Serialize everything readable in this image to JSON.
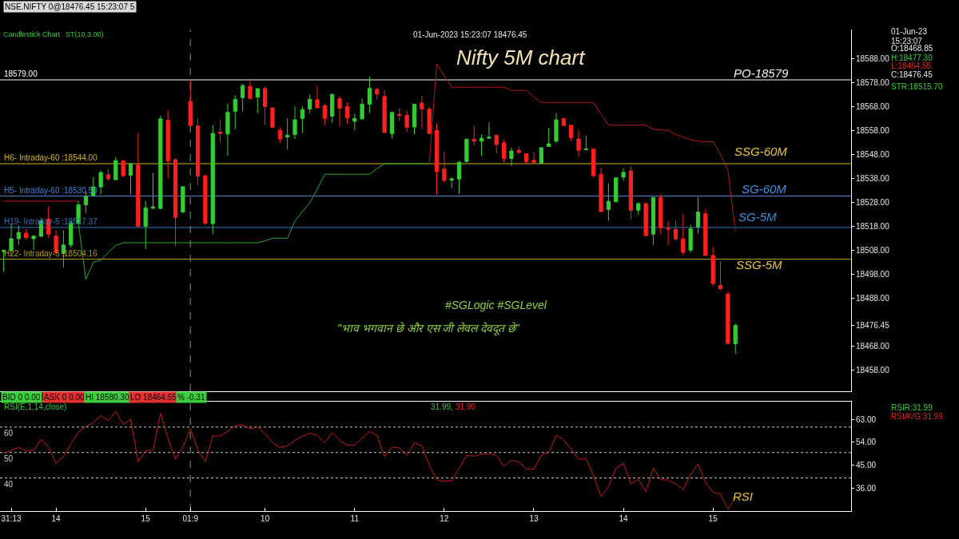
{
  "chart_data": [
    {
      "type": "candlestick",
      "title": "Nifty 5M chart",
      "categories": [
        null,
        "31:13",
        null,
        null,
        null,
        null,
        null,
        "14",
        null,
        null,
        null,
        null,
        null,
        null,
        null,
        null,
        null,
        null,
        null,
        "15",
        null,
        null,
        null,
        null,
        null,
        "01:9",
        null,
        null,
        null,
        null,
        null,
        null,
        null,
        null,
        null,
        "10",
        null,
        null,
        null,
        null,
        null,
        null,
        null,
        null,
        null,
        null,
        null,
        "11",
        null,
        null,
        null,
        null,
        null,
        null,
        null,
        null,
        null,
        null,
        null,
        "12",
        null,
        null,
        null,
        null,
        null,
        null,
        null,
        null,
        null,
        null,
        null,
        "13",
        null,
        null,
        null,
        null,
        null,
        null,
        null,
        null,
        null,
        null,
        null,
        "14",
        null,
        null,
        null,
        null,
        null,
        null,
        null,
        null,
        null,
        null,
        null,
        "15",
        null,
        null,
        null,
        null,
        null,
        null,
        null,
        null,
        null,
        null,
        null,
        null,
        null,
        null,
        null,
        null,
        null,
        null
      ],
      "ohlc": [
        [
          18507.3,
          18507.9,
          18499.0,
          18507.9
        ],
        [
          18507.9,
          18519.0,
          18506.0,
          18512.7
        ],
        [
          18512.7,
          18518.4,
          18510.1,
          18515.3
        ],
        [
          18515.0,
          18516.8,
          18512.3,
          18513.2
        ],
        [
          18512.7,
          18513.8,
          18507.9,
          18513.8
        ],
        [
          18513.7,
          18521.4,
          18513.5,
          18520.1
        ],
        [
          18520.9,
          18526.2,
          18512.9,
          18514.6
        ],
        [
          18513.8,
          18516.2,
          18506.2,
          18506.8
        ],
        [
          18506.5,
          18516.2,
          18500.7,
          18510.1
        ],
        [
          18510.1,
          18520.1,
          18509.0,
          18519.2
        ],
        [
          18519.2,
          18528.4,
          18519.0,
          18526.8
        ],
        [
          18526.8,
          18532.3,
          18523.4,
          18530.4
        ],
        [
          18530.7,
          18538.4,
          18530.4,
          18534.3
        ],
        [
          18534.3,
          18541.2,
          18531.2,
          18540.3
        ],
        [
          18539.4,
          18541.8,
          18536.8,
          18537.7
        ],
        [
          18537.3,
          18546.8,
          18537.3,
          18545.3
        ],
        [
          18545.1,
          18545.7,
          18538.4,
          18539.0
        ],
        [
          18539.2,
          18544.0,
          18531.2,
          18544.0
        ],
        [
          18543.4,
          18556.8,
          18517.9,
          18517.9
        ],
        [
          18517.9,
          18528.4,
          18508.4,
          18525.6
        ],
        [
          18525.4,
          18540.1,
          18525.1,
          18526.0
        ],
        [
          18525.3,
          18564.0,
          18525.1,
          18562.7
        ],
        [
          18562.1,
          18566.2,
          18537.9,
          18545.1
        ],
        [
          18545.7,
          18546.2,
          18509.6,
          18521.6
        ],
        [
          18523.8,
          18534.4,
          18523.4,
          18534.4
        ],
        [
          18570.0,
          18579.0,
          18559.9,
          18559.9
        ],
        [
          18559.8,
          18562.9,
          18535.1,
          18538.8
        ],
        [
          18539.0,
          18539.0,
          18518.4,
          18519.2
        ],
        [
          18519.0,
          18560.1,
          18514.6,
          18556.6
        ],
        [
          18557.2,
          18562.3,
          18552.9,
          18556.6
        ],
        [
          18556.4,
          18569.0,
          18547.3,
          18565.4
        ],
        [
          18565.9,
          18572.6,
          18558.4,
          18570.9
        ],
        [
          18571.6,
          18577.3,
          18565.7,
          18576.6
        ],
        [
          18576.3,
          18578.4,
          18571.2,
          18571.2
        ],
        [
          18571.8,
          18575.7,
          18565.1,
          18575.3
        ],
        [
          18575.4,
          18576.2,
          18560.1,
          18567.9
        ],
        [
          18567.3,
          18567.3,
          18559.2,
          18559.2
        ],
        [
          18557.9,
          18559.2,
          18552.6,
          18554.3
        ],
        [
          18555.1,
          18562.9,
          18549.9,
          18555.9
        ],
        [
          18556.2,
          18567.9,
          18554.3,
          18562.3
        ],
        [
          18562.9,
          18567.9,
          18556.8,
          18566.6
        ],
        [
          18566.8,
          18572.9,
          18565.1,
          18570.9
        ],
        [
          18570.7,
          18576.6,
          18567.3,
          18567.3
        ],
        [
          18568.2,
          18569.0,
          18560.1,
          18562.9
        ],
        [
          18563.8,
          18573.4,
          18561.0,
          18572.9
        ],
        [
          18571.2,
          18572.3,
          18559.6,
          18567.1
        ],
        [
          18567.9,
          18569.6,
          18560.7,
          18563.1
        ],
        [
          18561.7,
          18564.9,
          18557.9,
          18562.9
        ],
        [
          18562.7,
          18571.2,
          18562.3,
          18568.8
        ],
        [
          18568.8,
          18580.3,
          18565.1,
          18575.4
        ],
        [
          18575.1,
          18575.4,
          18570.7,
          18573.1
        ],
        [
          18572.1,
          18574.6,
          18557.0,
          18557.0
        ],
        [
          18556.6,
          18565.7,
          18554.6,
          18565.4
        ],
        [
          18564.6,
          18567.3,
          18561.8,
          18564.1
        ],
        [
          18564.2,
          18566.2,
          18557.3,
          18559.2
        ],
        [
          18559.3,
          18569.0,
          18556.2,
          18568.8
        ],
        [
          18569.3,
          18572.3,
          18558.4,
          18566.8
        ],
        [
          18566.8,
          18567.9,
          18556.6,
          18556.6
        ],
        [
          18557.9,
          18560.7,
          18531.2,
          18540.7
        ],
        [
          18541.8,
          18549.0,
          18536.2,
          18537.0
        ],
        [
          18537.1,
          18538.4,
          18533.7,
          18537.7
        ],
        [
          18537.6,
          18545.1,
          18531.4,
          18544.6
        ],
        [
          18544.9,
          18554.6,
          18544.6,
          18554.2
        ],
        [
          18554.2,
          18559.9,
          18551.8,
          18553.4
        ],
        [
          18553.4,
          18556.2,
          18547.3,
          18554.6
        ],
        [
          18554.6,
          18561.2,
          18554.6,
          18555.1
        ],
        [
          18555.9,
          18555.9,
          18548.4,
          18552.0
        ],
        [
          18552.7,
          18554.0,
          18544.6,
          18546.2
        ],
        [
          18546.2,
          18550.7,
          18542.9,
          18549.3
        ],
        [
          18549.6,
          18551.2,
          18547.9,
          18548.7
        ],
        [
          18548.2,
          18548.2,
          18544.0,
          18544.8
        ],
        [
          18545.4,
          18549.0,
          18544.3,
          18544.6
        ],
        [
          18544.2,
          18550.7,
          18544.2,
          18550.7
        ],
        [
          18551.2,
          18559.0,
          18551.0,
          18552.3
        ],
        [
          18553.4,
          18565.1,
          18552.6,
          18562.3
        ],
        [
          18562.9,
          18562.9,
          18559.9,
          18559.9
        ],
        [
          18560.1,
          18560.1,
          18553.4,
          18554.8
        ],
        [
          18554.3,
          18557.9,
          18546.8,
          18549.6
        ],
        [
          18549.8,
          18555.7,
          18549.6,
          18550.1
        ],
        [
          18550.1,
          18550.3,
          18538.4,
          18539.0
        ],
        [
          18539.6,
          18542.3,
          18524.0,
          18524.0
        ],
        [
          18524.9,
          18535.7,
          18520.1,
          18528.3
        ],
        [
          18528.1,
          18538.1,
          18527.9,
          18538.1
        ],
        [
          18538.4,
          18542.1,
          18536.8,
          18540.4
        ],
        [
          18541.0,
          18542.9,
          18520.7,
          18524.6
        ],
        [
          18524.6,
          18527.9,
          18522.6,
          18527.3
        ],
        [
          18527.3,
          18527.9,
          18513.4,
          18514.0
        ],
        [
          18514.6,
          18530.1,
          18510.1,
          18529.9
        ],
        [
          18529.9,
          18531.2,
          18514.6,
          18517.3
        ],
        [
          18517.0,
          18519.9,
          18510.1,
          18516.7
        ],
        [
          18516.6,
          18520.3,
          18511.8,
          18512.6
        ],
        [
          18512.6,
          18522.9,
          18505.9,
          18507.0
        ],
        [
          18507.9,
          18518.4,
          18506.8,
          18516.8
        ],
        [
          18517.6,
          18530.1,
          18514.8,
          18523.8
        ],
        [
          18523.1,
          18525.1,
          18505.7,
          18505.7
        ],
        [
          18505.7,
          18509.2,
          18492.9,
          18494.0
        ],
        [
          18493.2,
          18503.4,
          18491.2,
          18491.8
        ],
        [
          18489.6,
          18490.7,
          18468.4,
          18469.0
        ],
        [
          18468.85,
          18477.3,
          18464.55,
          18476.45
        ],
        null,
        null,
        null,
        null,
        null,
        null,
        null,
        null,
        null,
        null,
        null,
        null,
        null,
        null,
        null
      ],
      "colors": [
        "#33cc33",
        "#33cc33",
        "#33cc33",
        "#ff1f1f",
        "#33cc33",
        "#33cc33",
        "#ff1f1f",
        "#ff1f1f",
        "#33cc33",
        "#33cc33",
        "#33cc33",
        "#33cc33",
        "#33cc33",
        "#33cc33",
        "#ff1f1f",
        "#33cc33",
        "#ff1f1f",
        "#33cc33",
        "#ff1f1f",
        "#33cc33",
        "#33cc33",
        "#33cc33",
        "#ff1f1f",
        "#ff1f1f",
        "#33cc33",
        "#ff1f1f",
        "#ff1f1f",
        "#ff1f1f",
        "#33cc33",
        "#ff1f1f",
        "#33cc33",
        "#33cc33",
        "#33cc33",
        "#ff1f1f",
        "#33cc33",
        "#ff1f1f",
        "#ff1f1f",
        "#ff1f1f",
        "#33cc33",
        "#33cc33",
        "#33cc33",
        "#33cc33",
        "#ff1f1f",
        "#ff1f1f",
        "#33cc33",
        "#ff1f1f",
        "#ff1f1f",
        "#33cc33",
        "#33cc33",
        "#33cc33",
        "#ff1f1f",
        "#ff1f1f",
        "#33cc33",
        "#ff1f1f",
        "#ff1f1f",
        "#33cc33",
        "#ff1f1f",
        "#ff1f1f",
        "#ff1f1f",
        "#ff1f1f",
        "#33cc33",
        "#33cc33",
        "#33cc33",
        "#ff1f1f",
        "#33cc33",
        "#33cc33",
        "#ff1f1f",
        "#ff1f1f",
        "#33cc33",
        "#ff1f1f",
        "#ff1f1f",
        "#ff1f1f",
        "#33cc33",
        "#33cc33",
        "#33cc33",
        "#ff1f1f",
        "#ff1f1f",
        "#ff1f1f",
        "#33cc33",
        "#ff1f1f",
        "#ff1f1f",
        "#33cc33",
        "#33cc33",
        "#33cc33",
        "#ff1f1f",
        "#33cc33",
        "#ff1f1f",
        "#33cc33",
        "#ff1f1f",
        "#ff1f1f",
        "#ff1f1f",
        "#ff1f1f",
        "#33cc33",
        "#33cc33",
        "#ff1f1f",
        "#ff1f1f",
        "#ff1f1f",
        "#ff1f1f",
        "#33cc33",
        null,
        null,
        null,
        null,
        null,
        null,
        null,
        null,
        null,
        null,
        null,
        null,
        null,
        null,
        null
      ],
      "series": [
        {
          "type": "line",
          "color": "#2ea52e",
          "values": [
            null,
            null,
            null,
            null,
            null,
            null,
            null,
            null,
            null,
            null,
            18519.0,
            18495.7,
            18502.9,
            18503.7,
            18507.0,
            18509.9,
            18511.0,
            18511.0,
            18511.0,
            18511.0,
            18511.0,
            18511.0,
            18511.0,
            18511.0,
            18511.0,
            18511.0,
            18511.0,
            18511.0,
            18511.0,
            18511.0,
            18511.0,
            18511.0,
            18511.0,
            18511.0,
            18511.0,
            18511.8,
            18512.9,
            18512.9,
            18512.9,
            18520.1,
            18524.0,
            18527.7,
            18533.4,
            18539.6,
            18539.6,
            18539.6,
            18539.6,
            18539.6,
            18539.6,
            18539.6,
            18542.0,
            18544.0,
            18544.0,
            18544.0,
            18544.0,
            18544.0,
            18544.0,
            18544.0,
            null,
            null,
            null,
            null,
            null,
            null,
            null,
            null,
            null,
            null,
            null,
            null,
            null,
            null,
            null,
            null,
            null,
            null,
            null,
            null,
            null,
            null,
            null,
            null,
            null,
            null,
            null,
            null,
            null,
            null,
            null,
            null,
            null,
            null,
            null,
            null,
            null,
            null,
            null,
            null,
            null,
            null,
            null,
            null,
            null,
            null,
            null,
            null,
            null,
            null,
            null,
            null,
            null,
            null,
            null,
            null
          ]
        },
        {
          "type": "line",
          "color": "#b01c1c",
          "values": [
            18528.4,
            18528.4,
            18528.4,
            18528.4,
            18528.4,
            18528.4,
            18528.4,
            18528.4,
            18528.4,
            18528.4,
            18528.4,
            null,
            null,
            null,
            null,
            null,
            null,
            null,
            null,
            null,
            null,
            null,
            null,
            null,
            null,
            null,
            null,
            null,
            null,
            null,
            null,
            null,
            null,
            null,
            null,
            null,
            null,
            null,
            null,
            null,
            null,
            null,
            null,
            null,
            null,
            null,
            null,
            null,
            null,
            null,
            null,
            null,
            null,
            null,
            null,
            null,
            null,
            18544.0,
            18585.7,
            18580.7,
            18575.9,
            18575.9,
            18575.9,
            18575.9,
            18575.9,
            18575.9,
            18575.9,
            18575.9,
            18574.6,
            18574.6,
            18574.6,
            18571.8,
            18569.6,
            18569.6,
            18569.6,
            18569.6,
            18569.6,
            18569.6,
            18569.6,
            18569.6,
            18564.6,
            18560.1,
            18560.1,
            18560.1,
            18560.1,
            18560.1,
            18560.1,
            18558.4,
            18558.1,
            18557.9,
            18556.2,
            18555.1,
            18554.0,
            18553.4,
            18553.2,
            18553.2,
            18547.9,
            18541.2,
            18515.7,
            null,
            null,
            null,
            null,
            null,
            null,
            null,
            null,
            null,
            null,
            null,
            null,
            null,
            null,
            null
          ]
        }
      ],
      "ylim": [
        18449,
        18600
      ],
      "yticks": [
        {
          "value": 18588,
          "label": "18588.00"
        },
        {
          "value": 18578,
          "label": "18578.00"
        },
        {
          "value": 18568,
          "label": "18568.00"
        },
        {
          "value": 18558,
          "label": "18558.00"
        },
        {
          "value": 18548,
          "label": "18548.00"
        },
        {
          "value": 18538,
          "label": "18538.00"
        },
        {
          "value": 18528,
          "label": "18528.00"
        },
        {
          "value": 18518,
          "label": "18518.00"
        },
        {
          "value": 18508,
          "label": "18508.00"
        },
        {
          "value": 18498,
          "label": "18498.00"
        },
        {
          "value": 18488,
          "label": "18488.00"
        },
        {
          "value": 18476.45,
          "label": "18476.45"
        },
        {
          "value": 18468,
          "label": "18468.00"
        },
        {
          "value": 18458,
          "label": "18458.00"
        }
      ],
      "tick_labels": "y",
      "ref_lines": [
        {
          "axis": "y",
          "value": 18579,
          "label": "18579.00",
          "color": "#ffffff"
        },
        {
          "axis": "y",
          "value": 18544,
          "label": "H6- Intraday-60 :18544.00",
          "color": "#d4b70f"
        },
        {
          "axis": "y",
          "value": 18530.5,
          "label": "H5- Intraday-60 :18530.50",
          "color": "#3f80d0"
        },
        {
          "axis": "y",
          "value": 18517.37,
          "label": "H19- Intraday-5 :18517.37",
          "color": "#3572ba"
        },
        {
          "axis": "y",
          "value": 18504.16,
          "label": "H22- Intraday-5 :18504.16",
          "color": "#b39c16"
        },
        {
          "axis": "x",
          "value": "01:9",
          "color": "#8c8c8c",
          "line_style": "dashed"
        }
      ],
      "annotations": [
        "NSE.NIFTY 0@18476.45 15:23:07 5",
        "Candlestick Chart",
        "ST(10,3.00)",
        "01-Jun-2023 15:23:07 18476.45",
        "01-Jun-23",
        "15:23:07",
        "O:18468.85",
        "H:18477.30",
        "L:18464.55",
        "C:18476.45",
        "STR:18515.70",
        "#SGLogic #SGLevel",
        "\"भाव भगवान छे और एस जी लेवल देवदूत छे”",
        "BID 0 0.00",
        "ASK 0 0.00",
        "HI 18580.30",
        "LO 18464.55",
        "% -0.31",
        "PO-18579",
        "SSG-60M",
        "SG-60M",
        "SG-5M",
        "SSG-5M"
      ]
    },
    {
      "type": "line",
      "title": "RSI(E,1,14,close)",
      "categories": [
        null,
        "31:13",
        null,
        null,
        null,
        null,
        null,
        "14",
        null,
        null,
        null,
        null,
        null,
        null,
        null,
        null,
        null,
        null,
        null,
        "15",
        null,
        null,
        null,
        null,
        null,
        "01:9",
        null,
        null,
        null,
        null,
        null,
        null,
        null,
        null,
        null,
        "10",
        null,
        null,
        null,
        null,
        null,
        null,
        null,
        null,
        null,
        null,
        null,
        "11",
        null,
        null,
        null,
        null,
        null,
        null,
        null,
        null,
        null,
        null,
        null,
        "12",
        null,
        null,
        null,
        null,
        null,
        null,
        null,
        null,
        null,
        null,
        null,
        "13",
        null,
        null,
        null,
        null,
        null,
        null,
        null,
        null,
        null,
        null,
        null,
        "14",
        null,
        null,
        null,
        null,
        null,
        null,
        null,
        null,
        null,
        null,
        null,
        "15",
        null,
        null,
        null,
        null,
        null,
        null,
        null,
        null,
        null,
        null,
        null,
        null,
        null,
        null,
        null,
        null,
        null,
        null
      ],
      "color": "#c41a1a",
      "values": [
        49.6,
        50.8,
        52.0,
        50.7,
        50.9,
        55.2,
        52.2,
        45.8,
        48.4,
        53.5,
        58.0,
        60.2,
        61.9,
        64.5,
        62.5,
        66.2,
        61.0,
        63.1,
        46.4,
        50.7,
        50.9,
        65.4,
        55.5,
        47.3,
        52.2,
        59.3,
        51.0,
        46.4,
        56.5,
        56.5,
        58.3,
        60.6,
        60.9,
        59.3,
        60.0,
        57.4,
        53.9,
        52.0,
        52.6,
        54.8,
        56.5,
        57.6,
        56.7,
        53.8,
        57.8,
        54.8,
        52.9,
        52.9,
        55.7,
        58.3,
        56.7,
        48.4,
        52.2,
        51.8,
        48.9,
        53.8,
        52.6,
        45.1,
        39.3,
        38.7,
        39.1,
        43.8,
        48.9,
        48.6,
        49.4,
        49.6,
        48.8,
        44.5,
        47.0,
        46.3,
        43.5,
        43.5,
        48.8,
        50.0,
        56.8,
        55.0,
        51.3,
        47.3,
        47.6,
        40.8,
        32.7,
        36.5,
        43.9,
        45.7,
        37.7,
        39.5,
        34.6,
        43.9,
        39.3,
        39.2,
        37.7,
        35.5,
        41.4,
        45.5,
        38.1,
        34.4,
        33.6,
        27.8,
        32.0,
        null,
        null,
        null,
        null,
        null,
        null,
        null,
        null,
        null,
        null,
        null,
        null,
        null,
        null,
        null
      ],
      "ylim": [
        27,
        70
      ],
      "yticks": [
        {
          "value": 63,
          "label": "63.00"
        },
        {
          "value": 54,
          "label": "54.00"
        },
        {
          "value": 45,
          "label": "45.00"
        },
        {
          "value": 36,
          "label": "36.00"
        }
      ],
      "ref_lines": [
        {
          "axis": "y",
          "value": 60,
          "label": "60",
          "color": "#cfcfcf",
          "line_style": "dotted"
        },
        {
          "axis": "y",
          "value": 50,
          "label": "50",
          "color": "#cfcfcf",
          "line_style": "dotted"
        },
        {
          "axis": "y",
          "value": 40,
          "label": "40",
          "color": "#cfcfcf",
          "line_style": "dotted"
        },
        {
          "axis": "x",
          "value": "01:9",
          "color": "#8c8c8c",
          "line_style": "dashed"
        }
      ],
      "annotations": [
        "31.99,",
        "31.99",
        "RSIR:31.99",
        "RSIAVG:31.99",
        "RSI"
      ]
    }
  ]
}
